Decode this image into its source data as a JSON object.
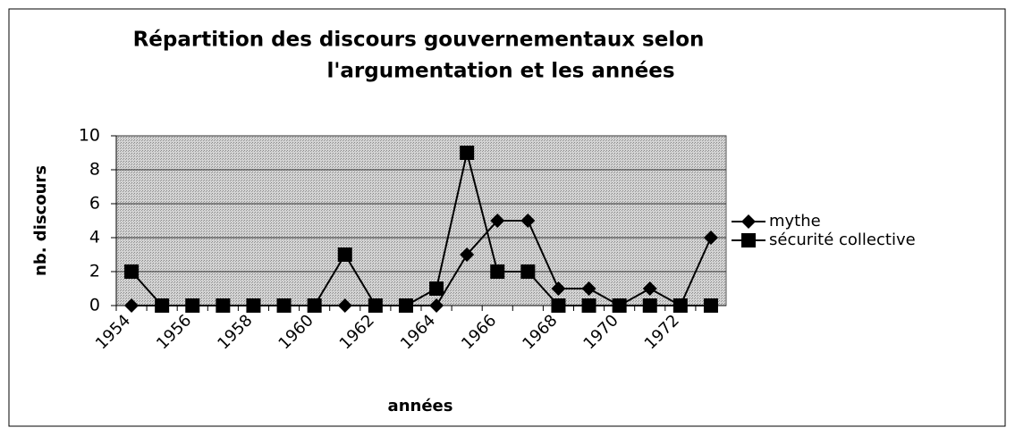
{
  "chart_data": {
    "type": "line",
    "title": [
      "Répartition des discours gouvernementaux selon",
      "l'argumentation et les années"
    ],
    "x_label": "années",
    "y_label": "nb. discours",
    "categories": [
      "1954",
      null,
      "1956",
      null,
      "1958",
      null,
      "1960",
      null,
      "1962",
      null,
      "1964",
      null,
      "1966",
      null,
      "1968",
      null,
      "1970",
      null,
      "1972",
      null
    ],
    "series": [
      {
        "name": "mythe",
        "color": "#000000",
        "marker": "diamond",
        "values": [
          0,
          0,
          0,
          0,
          0,
          0,
          0,
          0,
          0,
          0,
          0,
          3,
          5,
          5,
          1,
          1,
          0,
          1,
          0,
          4
        ]
      },
      {
        "name": "sécurité collective",
        "color": "#000000",
        "marker": "square",
        "values": [
          2,
          0,
          0,
          0,
          0,
          0,
          0,
          3,
          0,
          0,
          1,
          9,
          2,
          2,
          0,
          0,
          0,
          0,
          0,
          0
        ]
      }
    ],
    "ylim": [
      0,
      10
    ],
    "yticks": [
      0,
      2,
      4,
      6,
      8,
      10
    ],
    "grid": true,
    "legend": "right"
  }
}
